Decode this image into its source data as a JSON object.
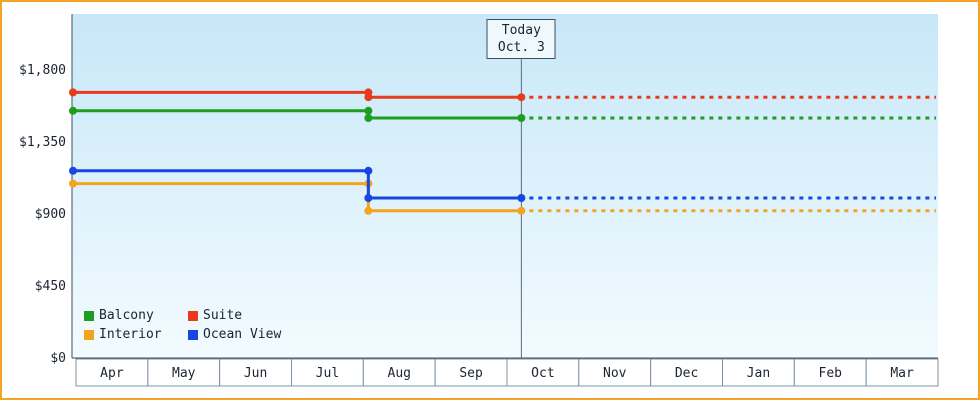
{
  "today_label": {
    "line1": "Today",
    "line2": "Oct. 3"
  },
  "legend": [
    "Balcony",
    "Suite",
    "Interior",
    "Ocean View"
  ],
  "chart_data": {
    "type": "line",
    "title": "",
    "x_categories": [
      "Apr",
      "May",
      "Jun",
      "Jul",
      "Aug",
      "Sep",
      "Oct",
      "Nov",
      "Dec",
      "Jan",
      "Feb",
      "Mar"
    ],
    "y_ticks": [
      {
        "label": "$1,800",
        "value": 1800
      },
      {
        "label": "$1,350",
        "value": 1350
      },
      {
        "label": "$900",
        "value": 900
      },
      {
        "label": "$450",
        "value": 450
      },
      {
        "label": "$0",
        "value": 0
      }
    ],
    "ylim": [
      0,
      2150
    ],
    "grid": false,
    "legend_position": "bottom-left",
    "today": {
      "x_category": "Oct",
      "month_index": 6,
      "fraction": 0.2,
      "label": "Today Oct. 3"
    },
    "series": [
      {
        "name": "Interior",
        "color": "#f2a51c",
        "before": 1090,
        "after": 920,
        "drop": {
          "month_index": 4,
          "fraction": 0.07
        },
        "forecast": 920,
        "forecast_style": "dotted"
      },
      {
        "name": "Ocean View",
        "color": "#1747e0",
        "before": 1170,
        "after": 1000,
        "drop": {
          "month_index": 4,
          "fraction": 0.07
        },
        "forecast": 1000,
        "forecast_style": "dotted"
      },
      {
        "name": "Balcony",
        "color": "#1e9e1e",
        "before": 1545,
        "after": 1500,
        "drop": {
          "month_index": 4,
          "fraction": 0.07
        },
        "forecast": 1500,
        "forecast_style": "dotted"
      },
      {
        "name": "Suite",
        "color": "#e83a1c",
        "before": 1660,
        "after": 1630,
        "drop": {
          "month_index": 4,
          "fraction": 0.07
        },
        "forecast": 1630,
        "forecast_style": "dotted"
      }
    ],
    "axis_color": "#3d4f63",
    "text_color": "#1b2430",
    "plot_gradient": {
      "top": "#c7e7f8",
      "bottom": "#f3fbff"
    }
  }
}
